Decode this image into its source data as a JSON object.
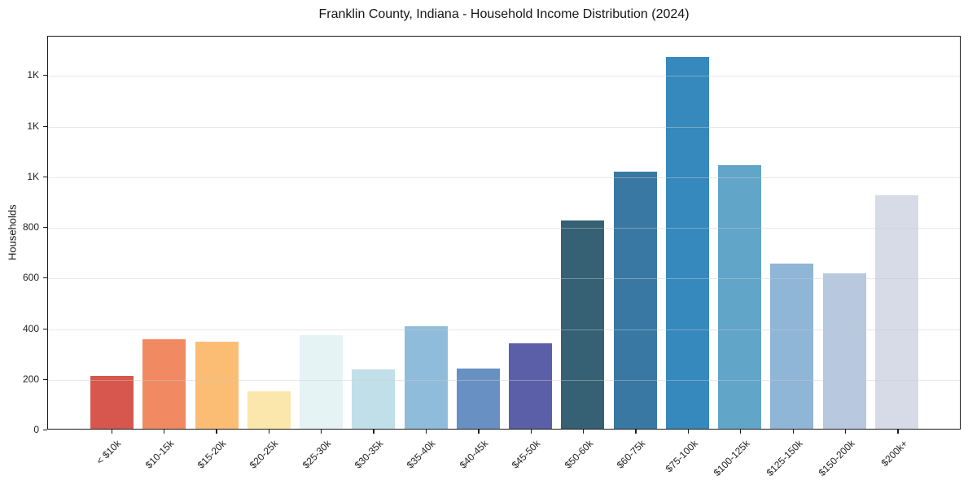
{
  "chart_data": {
    "type": "bar",
    "title": "Franklin County, Indiana - Household Income Distribution (2024)",
    "xlabel": "",
    "ylabel": "Households",
    "categories": [
      "< $10k",
      "$10-15k",
      "$15-20k",
      "$20-25k",
      "$25-30k",
      "$30-35k",
      "$35-40k",
      "$40-45k",
      "$45-50k",
      "$50-60k",
      "$60-75k",
      "$75-100k",
      "$100-125k",
      "$125-150k",
      "$150-200k",
      "$200k+"
    ],
    "values": [
      210,
      355,
      345,
      150,
      370,
      235,
      405,
      240,
      340,
      825,
      1020,
      1475,
      1045,
      655,
      615,
      925
    ],
    "bar_colors": [
      "#d7574e",
      "#f18a63",
      "#fbbd74",
      "#fbe7ab",
      "#e6f3f4",
      "#c1dfe9",
      "#90bcdc",
      "#6890c3",
      "#5b5fa7",
      "#366073",
      "#3878a3",
      "#3589bd",
      "#61a5c9",
      "#8fb5d7",
      "#b7c8df",
      "#d7dbe8"
    ],
    "ylim": [
      0,
      1555
    ],
    "yticks": [
      {
        "value": 0,
        "label": "0"
      },
      {
        "value": 200,
        "label": "200"
      },
      {
        "value": 400,
        "label": "400"
      },
      {
        "value": 600,
        "label": "600"
      },
      {
        "value": 800,
        "label": "800"
      },
      {
        "value": 1000,
        "label": "1K"
      },
      {
        "value": 1200,
        "label": "1K"
      },
      {
        "value": 1400,
        "label": "1K"
      }
    ],
    "grid": "horizontal-only",
    "legend_position": "none"
  },
  "styles": {
    "background_color": "#ffffff",
    "spine_color": "#1c1c1c",
    "grid_color": "rgba(205,205,205,0.45)",
    "text_color": "#161616"
  }
}
